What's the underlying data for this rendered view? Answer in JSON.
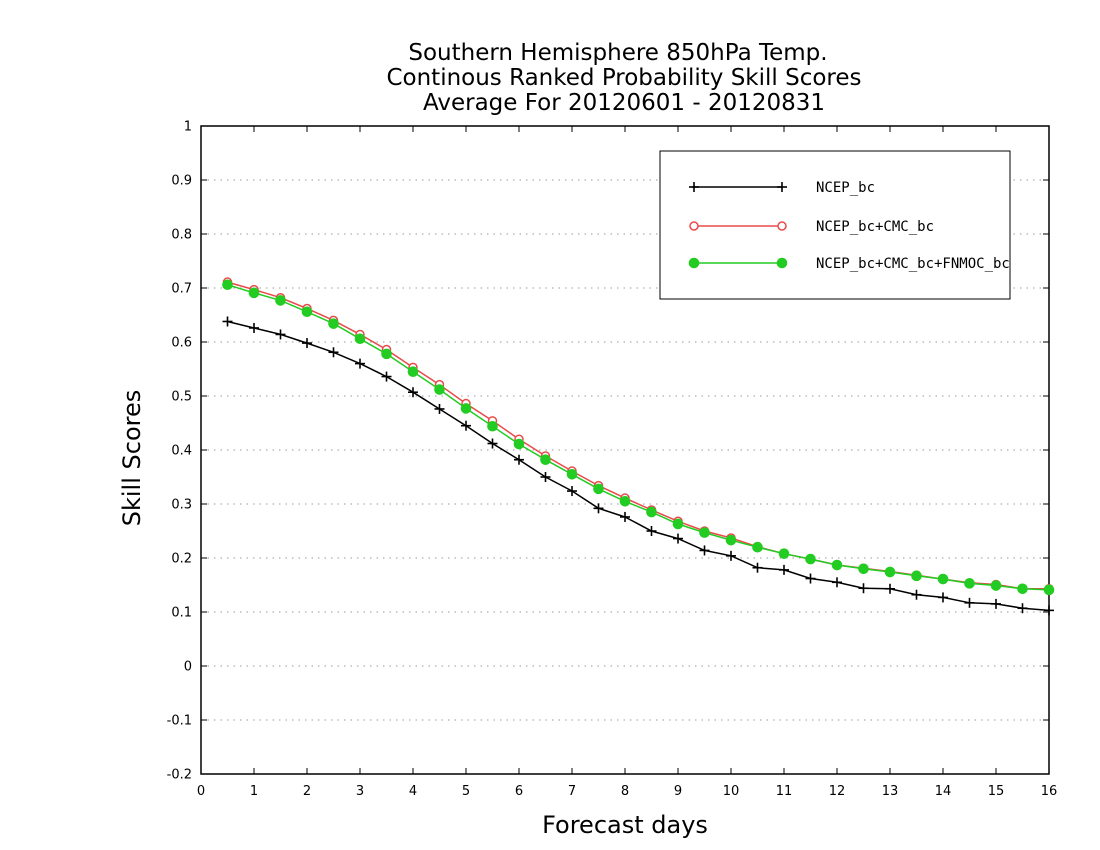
{
  "chart_data": {
    "type": "line",
    "title_lines": [
      "Southern Hemisphere 850hPa Temp.",
      "Continous Ranked Probability Skill Scores",
      "Average For 20120601 - 20120831"
    ],
    "xlabel": "Forecast days",
    "ylabel": "Skill Scores",
    "xlim": [
      0,
      16
    ],
    "ylim": [
      -0.2,
      1
    ],
    "xticks": [
      "0",
      "1",
      "2",
      "3",
      "4",
      "5",
      "6",
      "7",
      "8",
      "9",
      "10",
      "11",
      "12",
      "13",
      "14",
      "15",
      "16"
    ],
    "yticks": [
      "-0.2",
      "-0.1",
      "0",
      "0.1",
      "0.2",
      "0.3",
      "0.4",
      "0.5",
      "0.6",
      "0.7",
      "0.8",
      "0.9",
      "1"
    ],
    "grid": true,
    "legend_position": "top-right",
    "x": [
      0.5,
      1,
      1.5,
      2,
      2.5,
      3,
      3.5,
      4,
      4.5,
      5,
      5.5,
      6,
      6.5,
      7,
      7.5,
      8,
      8.5,
      9,
      9.5,
      10,
      10.5,
      11,
      11.5,
      12,
      12.5,
      13,
      13.5,
      14,
      14.5,
      15,
      15.5,
      16
    ],
    "series": [
      {
        "name": "NCEP_bc",
        "color": "#000000",
        "marker": "plus",
        "values": [
          0.638,
          0.626,
          0.614,
          0.598,
          0.581,
          0.56,
          0.536,
          0.507,
          0.476,
          0.445,
          0.412,
          0.382,
          0.35,
          0.324,
          0.292,
          0.276,
          0.25,
          0.236,
          0.214,
          0.204,
          0.182,
          0.178,
          0.162,
          0.155,
          0.144,
          0.143,
          0.132,
          0.127,
          0.117,
          0.115,
          0.107,
          0.103
        ]
      },
      {
        "name": "NCEP_bc+CMC_bc",
        "color": "#e84a4a",
        "marker": "open-circle",
        "values": [
          0.711,
          0.697,
          0.682,
          0.662,
          0.64,
          0.614,
          0.586,
          0.553,
          0.521,
          0.486,
          0.454,
          0.42,
          0.389,
          0.361,
          0.334,
          0.311,
          0.289,
          0.268,
          0.25,
          0.237,
          0.221,
          0.208,
          0.198,
          0.187,
          0.181,
          0.175,
          0.168,
          0.161,
          0.154,
          0.151,
          0.143,
          0.143
        ]
      },
      {
        "name": "NCEP_bc+CMC_bc+FNMOC_bc",
        "color": "#22cc22",
        "marker": "filled-circle",
        "values": [
          0.706,
          0.691,
          0.677,
          0.656,
          0.634,
          0.606,
          0.578,
          0.545,
          0.512,
          0.477,
          0.444,
          0.411,
          0.382,
          0.355,
          0.328,
          0.305,
          0.285,
          0.263,
          0.247,
          0.233,
          0.22,
          0.208,
          0.198,
          0.187,
          0.18,
          0.174,
          0.167,
          0.161,
          0.153,
          0.149,
          0.143,
          0.141
        ]
      }
    ]
  }
}
